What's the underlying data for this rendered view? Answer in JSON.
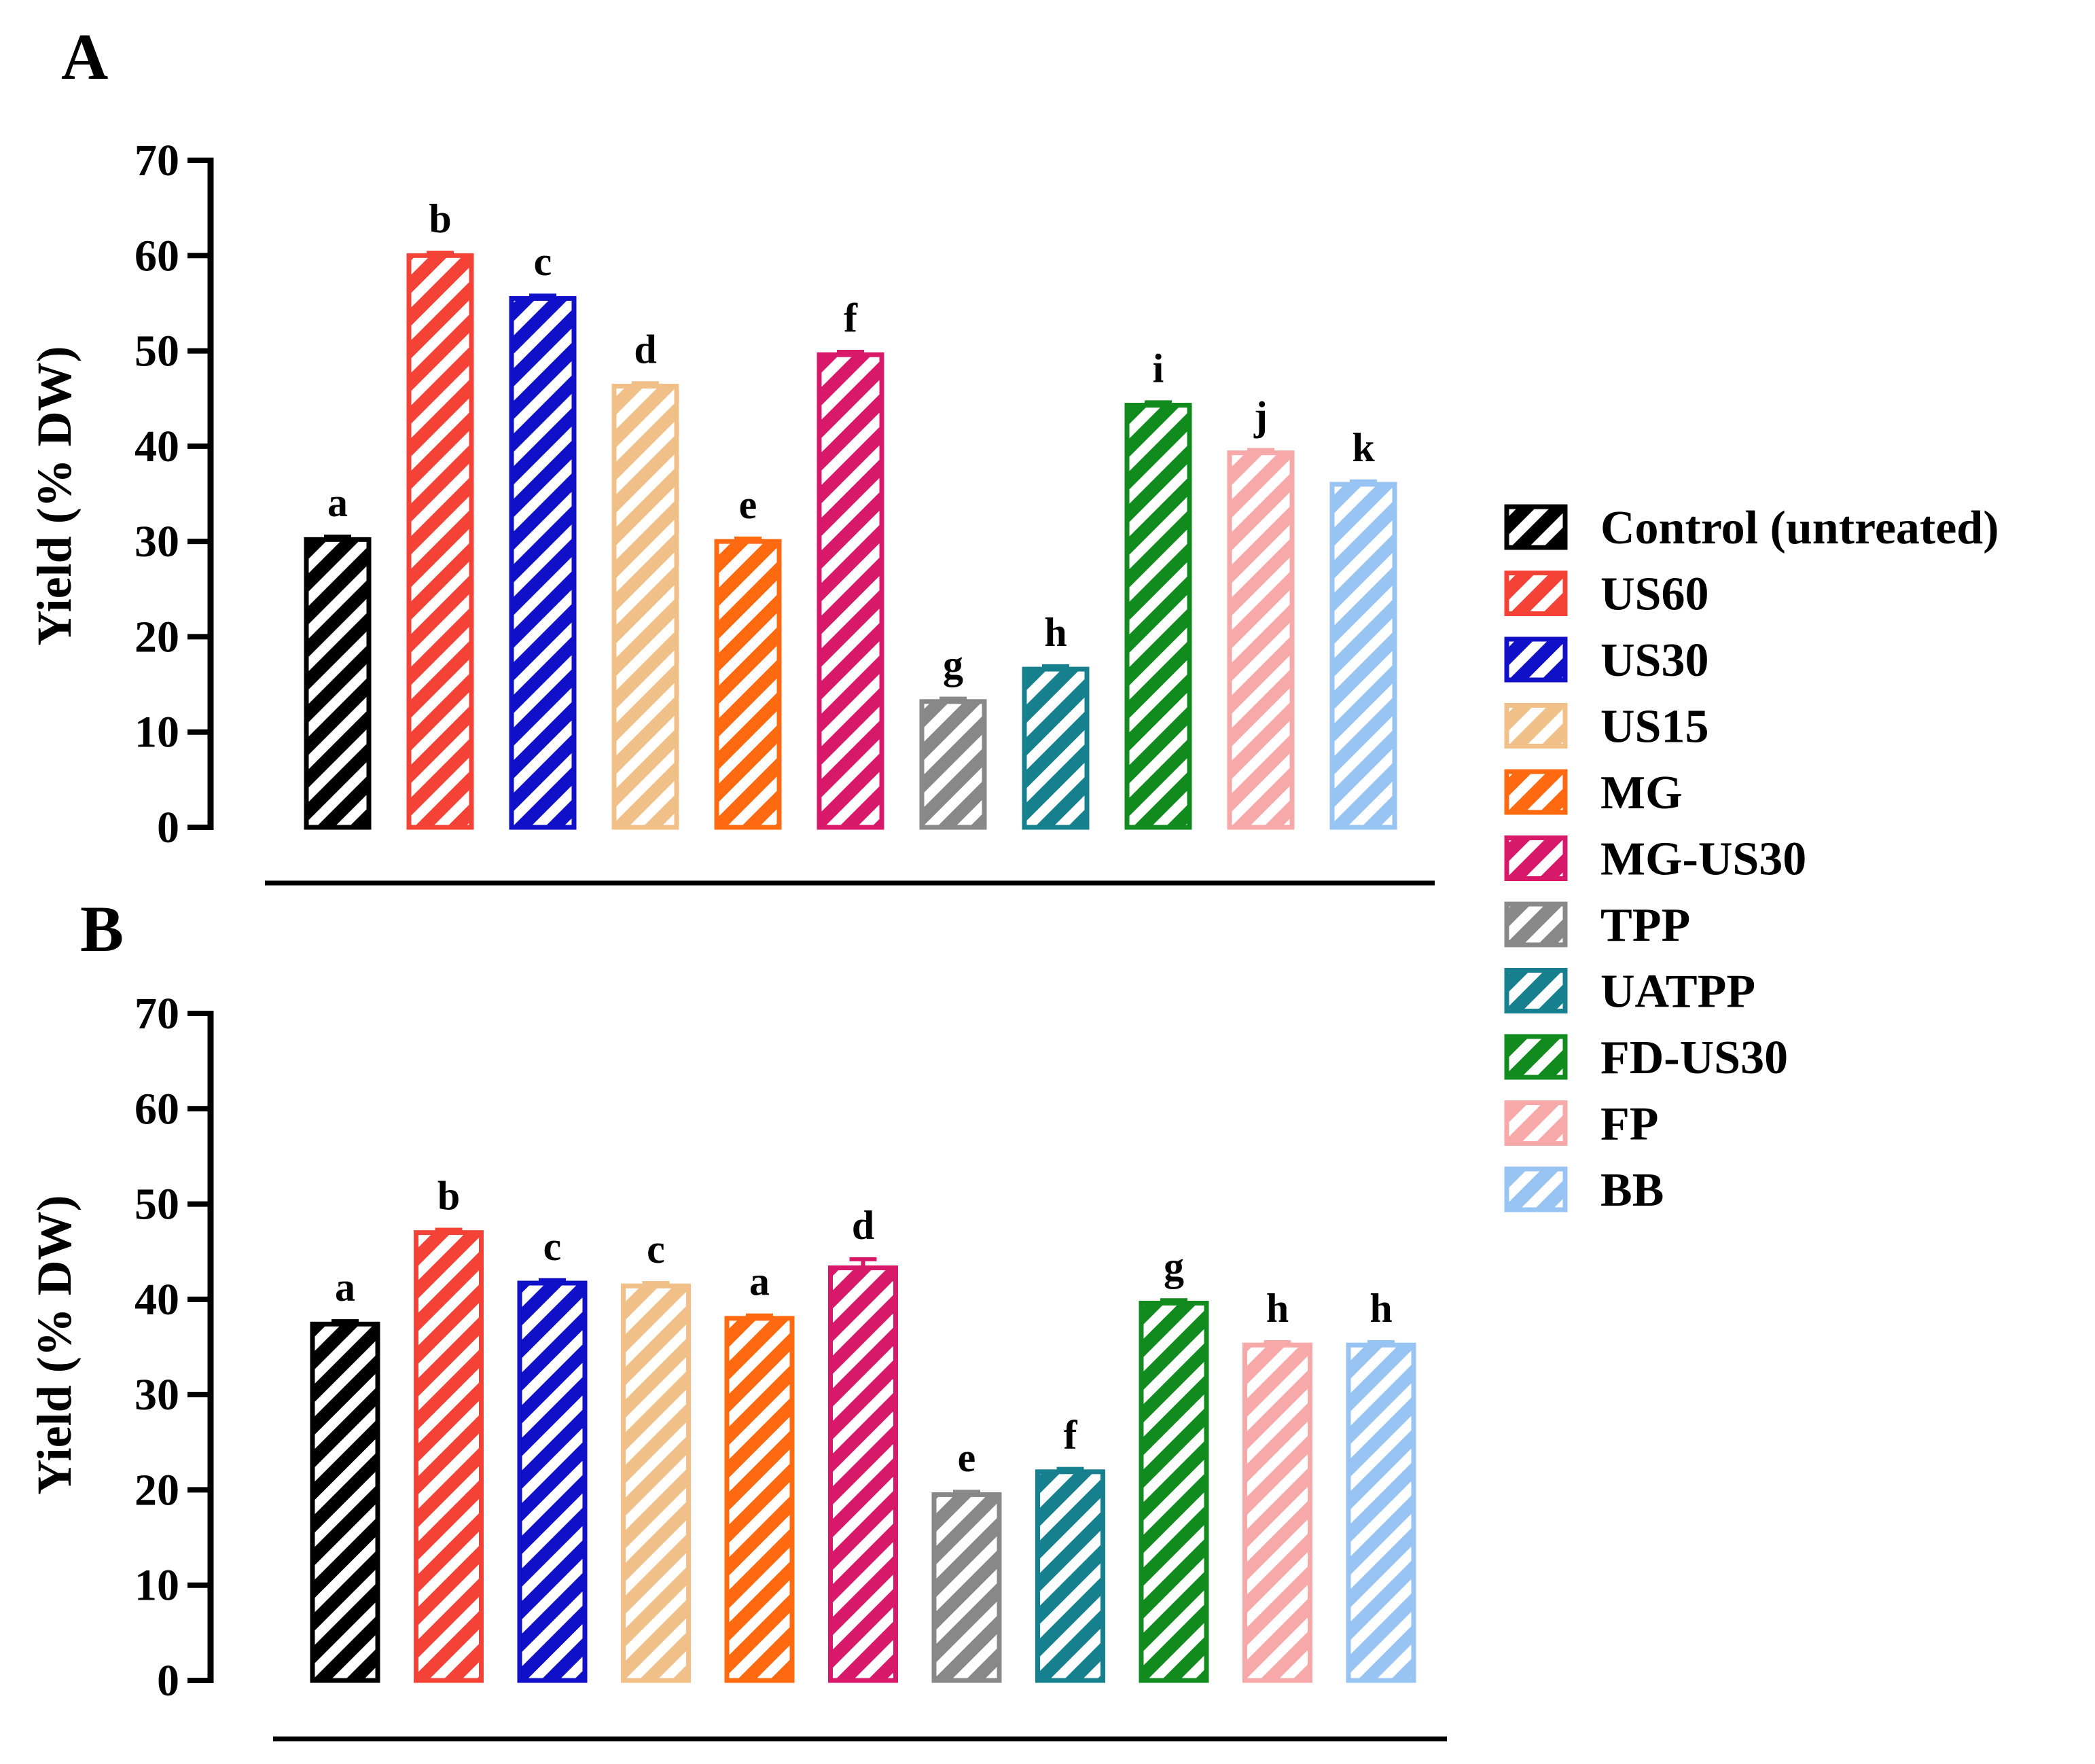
{
  "legend": {
    "placement": "right",
    "entries": [
      {
        "label": "Control (untreated)",
        "color": "#000000"
      },
      {
        "label": "US60",
        "color": "#f44336"
      },
      {
        "label": "US30",
        "color": "#1010c8"
      },
      {
        "label": "US15",
        "color": "#f0c088"
      },
      {
        "label": "MG",
        "color": "#ff6a10"
      },
      {
        "label": "MG-US30",
        "color": "#d81868"
      },
      {
        "label": "TPP",
        "color": "#888888"
      },
      {
        "label": "UATPP",
        "color": "#17808f"
      },
      {
        "label": "FD-US30",
        "color": "#118a1e"
      },
      {
        "label": "FP",
        "color": "#f7a8a8"
      },
      {
        "label": "BB",
        "color": "#98c4f4"
      }
    ]
  },
  "chart_data": [
    {
      "type": "bar",
      "panel_label": "A",
      "title": "",
      "xlabel": "",
      "ylabel": "Yield (% DW)",
      "ylim": [
        0,
        70
      ],
      "yticks": [
        "0",
        "10",
        "20",
        "30",
        "40",
        "50",
        "60",
        "70"
      ],
      "grid": false,
      "pattern": "diagonal-hatch",
      "categories": [
        "Control (untreated)",
        "US60",
        "US30",
        "US15",
        "MG",
        "MG-US30",
        "TPP",
        "UATPP",
        "FD-US30",
        "FP",
        "BB"
      ],
      "values": [
        30.2,
        60.0,
        55.5,
        46.3,
        30.0,
        49.6,
        13.2,
        16.6,
        44.3,
        39.3,
        36.0
      ],
      "errors": [
        0.3,
        0.3,
        0.3,
        0.3,
        0.3,
        0.3,
        0.3,
        0.3,
        0.3,
        0.3,
        0.3
      ],
      "significance": [
        "a",
        "b",
        "c",
        "d",
        "e",
        "f",
        "g",
        "h",
        "i",
        "j",
        "k"
      ]
    },
    {
      "type": "bar",
      "panel_label": "B",
      "title": "",
      "xlabel": "",
      "ylabel": "Yield (% DW)",
      "ylim": [
        0,
        70
      ],
      "yticks": [
        "0",
        "10",
        "20",
        "30",
        "40",
        "50",
        "60",
        "70"
      ],
      "grid": false,
      "pattern": "diagonal-hatch",
      "categories": [
        "Control (untreated)",
        "US60",
        "US30",
        "US15",
        "MG",
        "MG-US30",
        "TPP",
        "UATPP",
        "FD-US30",
        "FP",
        "BB"
      ],
      "values": [
        37.4,
        47.0,
        41.7,
        41.4,
        38.0,
        43.3,
        19.5,
        21.9,
        39.6,
        35.2,
        35.2
      ],
      "errors": [
        0.3,
        0.3,
        0.3,
        0.3,
        0.3,
        0.9,
        0.3,
        0.3,
        0.3,
        0.3,
        0.3
      ],
      "significance": [
        "a",
        "b",
        "c",
        "c",
        "a",
        "d",
        "e",
        "f",
        "g",
        "h",
        "h"
      ]
    }
  ]
}
